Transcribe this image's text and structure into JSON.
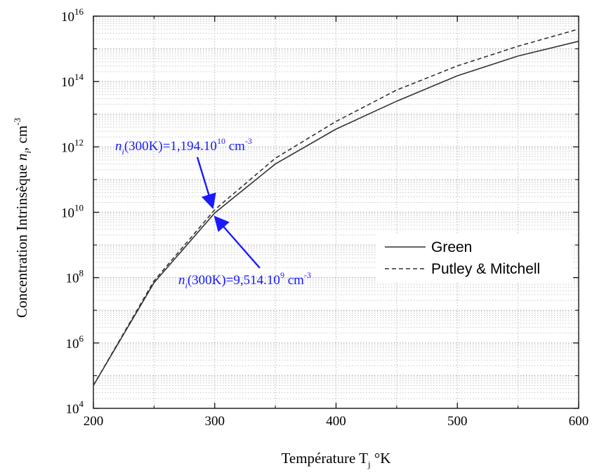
{
  "chart_data": {
    "type": "line",
    "xlabel": "Température T",
    "xlabel_sub": "j",
    "xlabel_unit": "°K",
    "ylabel": "Concentration Intrinsèque n",
    "ylabel_sub": "i",
    "ylabel_unit": ", cm",
    "ylabel_exp": "-3",
    "xlim": [
      200,
      600
    ],
    "ylim": [
      10000,
      1e+16
    ],
    "yscale": "log",
    "grid": true,
    "legend_position": "right",
    "x_ticks": [
      "200",
      "300",
      "400",
      "500",
      "600"
    ],
    "y_ticks": [
      {
        "base": "10",
        "exp": "4"
      },
      {
        "base": "10",
        "exp": "6"
      },
      {
        "base": "10",
        "exp": "8"
      },
      {
        "base": "10",
        "exp": "10"
      },
      {
        "base": "10",
        "exp": "12"
      },
      {
        "base": "10",
        "exp": "14"
      },
      {
        "base": "10",
        "exp": "16"
      }
    ],
    "series": [
      {
        "name": "Green",
        "style": "solid",
        "color": "#333333",
        "x": [
          200,
          250,
          300,
          350,
          400,
          450,
          500,
          550,
          600
        ],
        "y": [
          50000.0,
          70000000.0,
          9514000000.0,
          300000000000.0,
          3500000000000.0,
          25000000000000.0,
          150000000000000.0,
          600000000000000.0,
          1700000000000000.0
        ]
      },
      {
        "name": "Putley & Mitchell",
        "style": "dashed",
        "color": "#333333",
        "x": [
          200,
          250,
          300,
          350,
          400,
          450,
          500,
          550,
          600
        ],
        "y": [
          50000.0,
          80000000.0,
          11940000000.0,
          450000000000.0,
          6000000000000.0,
          55000000000000.0,
          300000000000000.0,
          1200000000000000.0,
          4000000000000000.0
        ]
      }
    ],
    "annotations": [
      {
        "color": "#1a1aff",
        "pre": "n",
        "sub": "i",
        "mid": "(300K)=1,194.10",
        "sup": "10",
        "post": " cm",
        "unit_sup": "-3",
        "target_x": 300,
        "target_y": 11940000000.0
      },
      {
        "color": "#1a1aff",
        "pre": "n",
        "sub": "i",
        "mid": "(300K)=9,514.10",
        "sup": "9",
        "post": " cm",
        "unit_sup": "-3",
        "target_x": 300,
        "target_y": 9514000000.0
      }
    ]
  }
}
